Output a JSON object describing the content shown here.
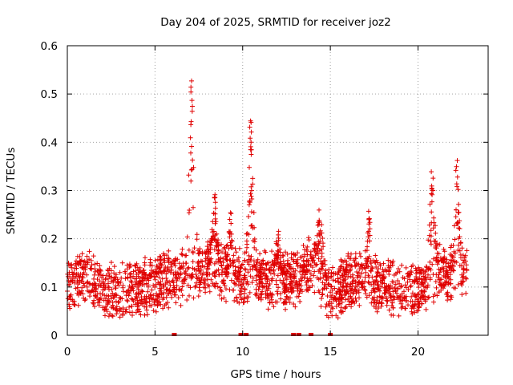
{
  "chart_data": {
    "type": "scatter",
    "title": "Day 204 of 2025, SRMTID for receiver joz2",
    "xlabel": "GPS time / hours",
    "ylabel": "SRMTID / TECUs",
    "xlim": [
      0,
      24
    ],
    "ylim": [
      0,
      0.6
    ],
    "xticks": [
      0,
      5,
      10,
      15,
      20
    ],
    "xtick_labels": [
      "0",
      "5",
      "10",
      "15",
      "20"
    ],
    "yticks": [
      0,
      0.1,
      0.2,
      0.3,
      0.4,
      0.5,
      0.6
    ],
    "ytick_labels": [
      "0",
      "0.1",
      "0.2",
      "0.3",
      "0.4",
      "0.5",
      "0.6"
    ],
    "grid": true,
    "marker": "+",
    "series": [
      {
        "name": "SRMTID",
        "color": "#e00000",
        "x_range": [
          0.0,
          22.8
        ],
        "baseline": [
          {
            "x": 0.0,
            "y": 0.1
          },
          {
            "x": 1.0,
            "y": 0.13
          },
          {
            "x": 2.0,
            "y": 0.09
          },
          {
            "x": 3.0,
            "y": 0.09
          },
          {
            "x": 4.0,
            "y": 0.1
          },
          {
            "x": 5.0,
            "y": 0.1
          },
          {
            "x": 6.0,
            "y": 0.12
          },
          {
            "x": 7.0,
            "y": 0.13
          },
          {
            "x": 8.0,
            "y": 0.14
          },
          {
            "x": 9.0,
            "y": 0.13
          },
          {
            "x": 10.0,
            "y": 0.12
          },
          {
            "x": 11.0,
            "y": 0.12
          },
          {
            "x": 12.0,
            "y": 0.11
          },
          {
            "x": 13.0,
            "y": 0.12
          },
          {
            "x": 14.0,
            "y": 0.15
          },
          {
            "x": 15.0,
            "y": 0.08
          },
          {
            "x": 16.0,
            "y": 0.11
          },
          {
            "x": 17.0,
            "y": 0.12
          },
          {
            "x": 18.0,
            "y": 0.1
          },
          {
            "x": 19.0,
            "y": 0.1
          },
          {
            "x": 20.0,
            "y": 0.09
          },
          {
            "x": 21.0,
            "y": 0.13
          },
          {
            "x": 22.0,
            "y": 0.13
          },
          {
            "x": 22.8,
            "y": 0.13
          }
        ],
        "spikes": [
          {
            "x": 7.1,
            "width": 0.35,
            "peak": 0.53
          },
          {
            "x": 8.4,
            "width": 0.3,
            "peak": 0.3
          },
          {
            "x": 9.3,
            "width": 0.2,
            "peak": 0.26
          },
          {
            "x": 10.45,
            "width": 0.3,
            "peak": 0.45
          },
          {
            "x": 12.0,
            "width": 0.3,
            "peak": 0.22
          },
          {
            "x": 14.4,
            "width": 0.4,
            "peak": 0.26
          },
          {
            "x": 17.2,
            "width": 0.2,
            "peak": 0.26
          },
          {
            "x": 20.8,
            "width": 0.35,
            "peak": 0.34
          },
          {
            "x": 22.2,
            "width": 0.3,
            "peak": 0.37
          }
        ],
        "zero_points": [
          6.1,
          9.9,
          10.2,
          12.9,
          13.2,
          13.9,
          15.0
        ]
      }
    ]
  }
}
